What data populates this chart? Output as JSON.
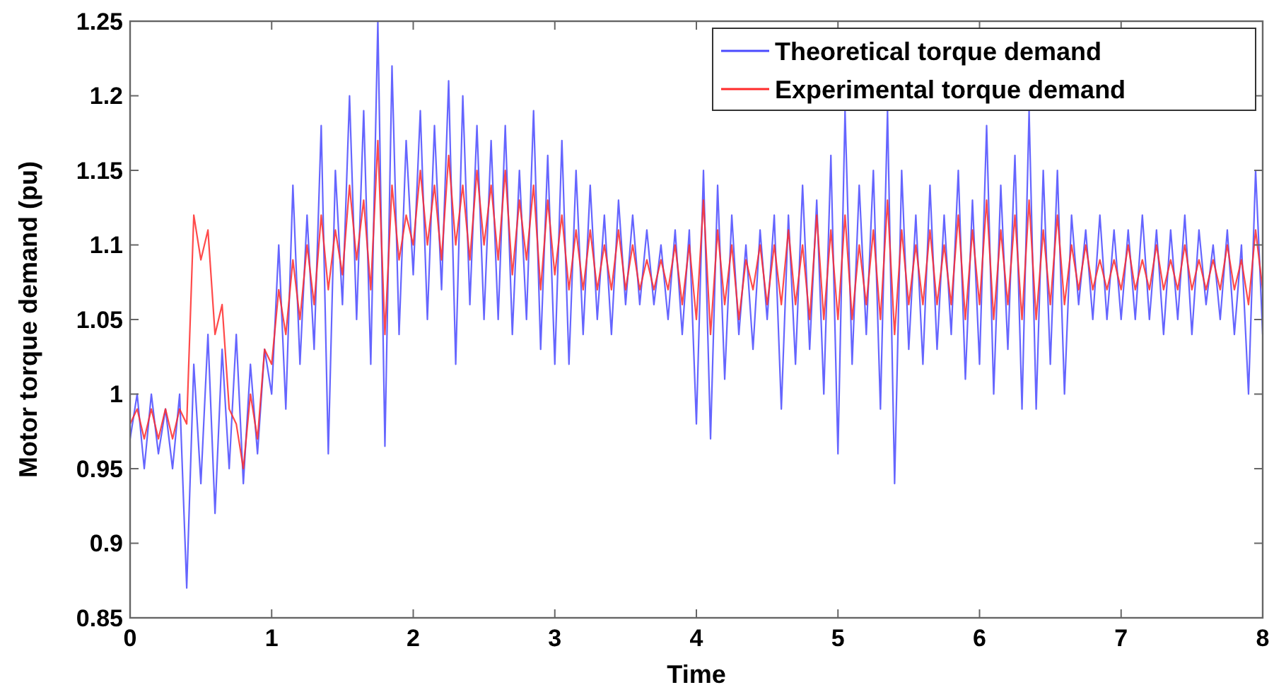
{
  "chart_data": {
    "type": "line",
    "xlabel": "Time",
    "ylabel": "Motor torque demand (pu)",
    "xlim": [
      0,
      8
    ],
    "ylim": [
      0.85,
      1.25
    ],
    "xticks": [
      0,
      1,
      2,
      3,
      4,
      5,
      6,
      7,
      8
    ],
    "yticks": [
      0.85,
      0.9,
      0.95,
      1,
      1.05,
      1.1,
      1.15,
      1.2,
      1.25
    ],
    "legend": "top right",
    "grid": false,
    "line_style": "solid",
    "marker": "none",
    "x": [
      0,
      0.05,
      0.1,
      0.15,
      0.2,
      0.25,
      0.3,
      0.35,
      0.4,
      0.45,
      0.5,
      0.55,
      0.6,
      0.65,
      0.7,
      0.75,
      0.8,
      0.85,
      0.9,
      0.95,
      1,
      1.05,
      1.1,
      1.15,
      1.2,
      1.25,
      1.3,
      1.35,
      1.4,
      1.45,
      1.5,
      1.55,
      1.6,
      1.65,
      1.7,
      1.75,
      1.8,
      1.85,
      1.9,
      1.95,
      2,
      2.05,
      2.1,
      2.15,
      2.2,
      2.25,
      2.3,
      2.35,
      2.4,
      2.45,
      2.5,
      2.55,
      2.6,
      2.65,
      2.7,
      2.75,
      2.8,
      2.85,
      2.9,
      2.95,
      3,
      3.05,
      3.1,
      3.15,
      3.2,
      3.25,
      3.3,
      3.35,
      3.4,
      3.45,
      3.5,
      3.55,
      3.6,
      3.65,
      3.7,
      3.75,
      3.8,
      3.85,
      3.9,
      3.95,
      4,
      4.05,
      4.1,
      4.15,
      4.2,
      4.25,
      4.3,
      4.35,
      4.4,
      4.45,
      4.5,
      4.55,
      4.6,
      4.65,
      4.7,
      4.75,
      4.8,
      4.85,
      4.9,
      4.95,
      5,
      5.05,
      5.1,
      5.15,
      5.2,
      5.25,
      5.3,
      5.35,
      5.4,
      5.45,
      5.5,
      5.55,
      5.6,
      5.65,
      5.7,
      5.75,
      5.8,
      5.85,
      5.9,
      5.95,
      6,
      6.05,
      6.1,
      6.15,
      6.2,
      6.25,
      6.3,
      6.35,
      6.4,
      6.45,
      6.5,
      6.55,
      6.6,
      6.65,
      6.7,
      6.75,
      6.8,
      6.85,
      6.9,
      6.95,
      7,
      7.05,
      7.1,
      7.15,
      7.2,
      7.25,
      7.3,
      7.35,
      7.4,
      7.45,
      7.5,
      7.55,
      7.6,
      7.65,
      7.7,
      7.75,
      7.8,
      7.85,
      7.9,
      7.95,
      8
    ],
    "series": [
      {
        "name": "Theoretical torque demand",
        "color": "#4a4aff",
        "values": [
          0.97,
          1.0,
          0.95,
          1.0,
          0.96,
          0.99,
          0.95,
          1.0,
          0.87,
          1.02,
          0.94,
          1.04,
          0.92,
          1.03,
          0.95,
          1.04,
          0.94,
          1.02,
          0.96,
          1.03,
          1.0,
          1.1,
          0.99,
          1.14,
          1.02,
          1.12,
          1.03,
          1.18,
          0.96,
          1.15,
          1.06,
          1.2,
          1.05,
          1.19,
          1.02,
          1.25,
          0.965,
          1.22,
          1.04,
          1.17,
          1.08,
          1.19,
          1.05,
          1.18,
          1.07,
          1.21,
          1.02,
          1.2,
          1.06,
          1.18,
          1.05,
          1.17,
          1.05,
          1.18,
          1.04,
          1.15,
          1.05,
          1.19,
          1.03,
          1.16,
          1.02,
          1.17,
          1.02,
          1.15,
          1.04,
          1.14,
          1.05,
          1.12,
          1.04,
          1.13,
          1.06,
          1.12,
          1.06,
          1.11,
          1.06,
          1.1,
          1.05,
          1.11,
          1.04,
          1.11,
          0.98,
          1.15,
          0.97,
          1.14,
          1.01,
          1.12,
          1.04,
          1.1,
          1.03,
          1.11,
          1.05,
          1.12,
          0.99,
          1.12,
          1.02,
          1.14,
          1.03,
          1.13,
          1.0,
          1.16,
          0.96,
          1.19,
          1.02,
          1.14,
          1.04,
          1.15,
          0.99,
          1.19,
          0.94,
          1.15,
          1.03,
          1.12,
          1.02,
          1.14,
          1.03,
          1.12,
          1.04,
          1.15,
          1.01,
          1.13,
          1.02,
          1.18,
          1.0,
          1.14,
          1.03,
          1.16,
          0.99,
          1.19,
          0.99,
          1.15,
          1.02,
          1.15,
          1.0,
          1.12,
          1.06,
          1.11,
          1.05,
          1.12,
          1.05,
          1.11,
          1.05,
          1.11,
          1.05,
          1.12,
          1.05,
          1.11,
          1.04,
          1.11,
          1.05,
          1.12,
          1.04,
          1.11,
          1.06,
          1.1,
          1.05,
          1.11,
          1.04,
          1.1,
          1.0,
          1.15,
          1.04
        ]
      },
      {
        "name": "Experimental torque demand",
        "color": "#ff2a2a",
        "values": [
          0.98,
          0.99,
          0.97,
          0.99,
          0.97,
          0.99,
          0.97,
          0.99,
          0.98,
          1.12,
          1.09,
          1.11,
          1.04,
          1.06,
          0.99,
          0.98,
          0.95,
          1.0,
          0.97,
          1.03,
          1.02,
          1.07,
          1.04,
          1.09,
          1.05,
          1.1,
          1.06,
          1.12,
          1.07,
          1.11,
          1.08,
          1.14,
          1.09,
          1.13,
          1.07,
          1.17,
          1.04,
          1.14,
          1.09,
          1.12,
          1.1,
          1.15,
          1.1,
          1.14,
          1.09,
          1.16,
          1.1,
          1.14,
          1.09,
          1.15,
          1.1,
          1.14,
          1.09,
          1.15,
          1.08,
          1.13,
          1.09,
          1.14,
          1.07,
          1.13,
          1.08,
          1.12,
          1.07,
          1.11,
          1.07,
          1.11,
          1.07,
          1.1,
          1.07,
          1.11,
          1.07,
          1.1,
          1.07,
          1.09,
          1.07,
          1.09,
          1.07,
          1.1,
          1.06,
          1.1,
          1.05,
          1.13,
          1.04,
          1.11,
          1.06,
          1.1,
          1.05,
          1.09,
          1.07,
          1.1,
          1.06,
          1.1,
          1.06,
          1.11,
          1.06,
          1.1,
          1.05,
          1.12,
          1.05,
          1.11,
          1.05,
          1.12,
          1.05,
          1.1,
          1.06,
          1.11,
          1.05,
          1.13,
          1.04,
          1.11,
          1.06,
          1.1,
          1.06,
          1.11,
          1.06,
          1.1,
          1.06,
          1.12,
          1.05,
          1.11,
          1.06,
          1.13,
          1.05,
          1.11,
          1.06,
          1.12,
          1.05,
          1.13,
          1.05,
          1.11,
          1.06,
          1.12,
          1.06,
          1.1,
          1.07,
          1.1,
          1.07,
          1.09,
          1.07,
          1.09,
          1.07,
          1.1,
          1.07,
          1.09,
          1.07,
          1.1,
          1.07,
          1.09,
          1.07,
          1.1,
          1.07,
          1.09,
          1.07,
          1.09,
          1.07,
          1.1,
          1.07,
          1.09,
          1.06,
          1.11,
          1.07
        ]
      }
    ]
  }
}
